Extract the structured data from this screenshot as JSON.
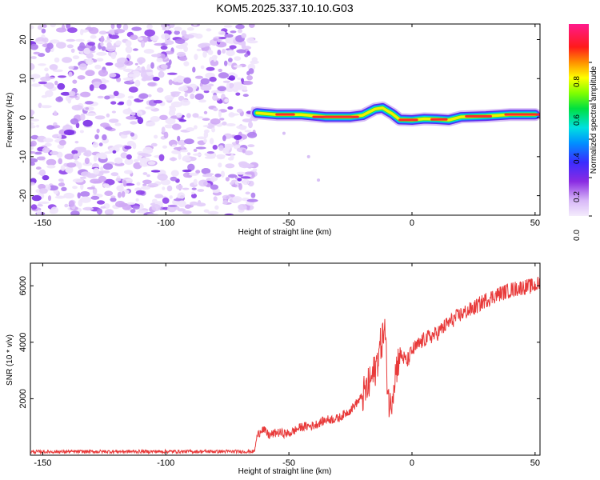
{
  "title": "KOM5.2025.337.10.10.G03",
  "chart_data": [
    {
      "type": "heatmap",
      "title": "KOM5.2025.337.10.10.G03",
      "xlabel": "Height of straight line (km)",
      "ylabel": "Frequency (Hz)",
      "xlim": [
        -155,
        52
      ],
      "ylim": [
        -25,
        24
      ],
      "xticks": [
        -150,
        -100,
        -50,
        0,
        50
      ],
      "yticks": [
        -20,
        -10,
        0,
        10,
        20
      ],
      "colorbar": {
        "label": "Normalized spectral amplitude",
        "range": [
          0,
          1
        ],
        "ticks": [
          0.0,
          0.2,
          0.4,
          0.6,
          0.8
        ],
        "tick_labels": [
          "0.0",
          "0.2",
          "0.4",
          "0.6",
          "0.8"
        ]
      },
      "signal_ridge": {
        "description": "narrow high-amplitude band near 0 Hz starting at about -63 km",
        "x": [
          -63,
          -55,
          -45,
          -35,
          -25,
          -20,
          -15,
          -12,
          -8,
          -5,
          0,
          5,
          10,
          15,
          20,
          30,
          40,
          50
        ],
        "freq": [
          1.2,
          0.8,
          0.8,
          0.2,
          0.2,
          0.6,
          2.2,
          2.5,
          1.0,
          -0.5,
          -0.6,
          -0.3,
          -0.4,
          -0.6,
          0.2,
          0.4,
          0.8,
          0.8
        ]
      },
      "noise_region_x": [
        -155,
        -63
      ]
    },
    {
      "type": "line",
      "xlabel": "Height of straight line (km)",
      "ylabel": "SNR (10 * v/v)",
      "xlim": [
        -155,
        52
      ],
      "ylim": [
        0,
        6800
      ],
      "xticks": [
        -150,
        -100,
        -50,
        0,
        50
      ],
      "yticks": [
        2000,
        4000,
        6000
      ],
      "series": [
        {
          "name": "SNR",
          "color": "#e83a3a",
          "x": [
            -155,
            -120,
            -90,
            -64,
            -63,
            -61,
            -58,
            -55,
            -50,
            -45,
            -40,
            -35,
            -30,
            -25,
            -20,
            -18,
            -15,
            -13,
            -11,
            -10,
            -9,
            -7,
            -5,
            -2,
            0,
            5,
            10,
            15,
            20,
            25,
            30,
            35,
            40,
            45,
            50,
            52
          ],
          "y": [
            120,
            130,
            130,
            130,
            650,
            950,
            700,
            800,
            760,
            1000,
            1050,
            1250,
            1300,
            1600,
            2100,
            2400,
            3000,
            3800,
            4500,
            2600,
            1600,
            2800,
            3600,
            3300,
            3700,
            4100,
            4300,
            4700,
            5000,
            5200,
            5500,
            5700,
            5850,
            5950,
            6000,
            6100
          ]
        }
      ]
    }
  ]
}
